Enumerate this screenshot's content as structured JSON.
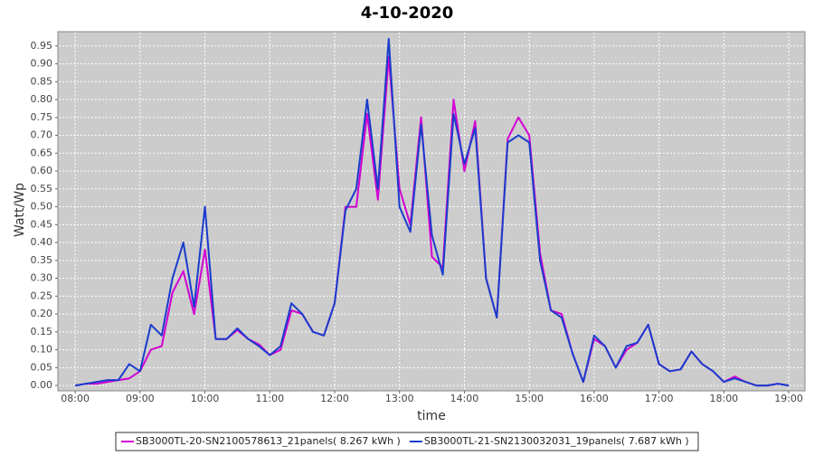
{
  "chart_data": {
    "type": "line",
    "title": "4-10-2020",
    "x_label": "time",
    "y_label": "Watt/Wp",
    "x": [
      "08:00",
      "08:10",
      "08:20",
      "08:30",
      "08:40",
      "08:50",
      "09:00",
      "09:10",
      "09:20",
      "09:30",
      "09:40",
      "09:50",
      "10:00",
      "10:10",
      "10:20",
      "10:30",
      "10:40",
      "10:50",
      "11:00",
      "11:10",
      "11:20",
      "11:30",
      "11:40",
      "11:50",
      "12:00",
      "12:10",
      "12:20",
      "12:30",
      "12:40",
      "12:50",
      "13:00",
      "13:10",
      "13:20",
      "13:30",
      "13:40",
      "13:50",
      "14:00",
      "14:10",
      "14:20",
      "14:30",
      "14:40",
      "14:50",
      "15:00",
      "15:10",
      "15:20",
      "15:30",
      "15:40",
      "15:50",
      "16:00",
      "16:10",
      "16:20",
      "16:30",
      "16:40",
      "16:50",
      "17:00",
      "17:10",
      "17:20",
      "17:30",
      "17:40",
      "17:50",
      "18:00",
      "18:10",
      "18:20",
      "18:30",
      "18:40",
      "18:50",
      "19:00"
    ],
    "series": [
      {
        "name": "SB3000TL-20-SN2100578613_21panels( 8.267 kWh )",
        "color": "#d200d2",
        "values": [
          0,
          0.005,
          0.005,
          0.01,
          0.015,
          0.02,
          0.04,
          0.1,
          0.11,
          0.26,
          0.32,
          0.2,
          0.38,
          0.13,
          0.13,
          0.155,
          0.13,
          0.115,
          0.085,
          0.1,
          0.21,
          0.2,
          0.15,
          0.14,
          0.23,
          0.5,
          0.5,
          0.76,
          0.52,
          0.92,
          0.55,
          0.45,
          0.75,
          0.36,
          0.33,
          0.8,
          0.6,
          0.74,
          0.3,
          0.19,
          0.69,
          0.75,
          0.7,
          0.37,
          0.21,
          0.2,
          0.09,
          0.01,
          0.13,
          0.11,
          0.05,
          0.1,
          0.12,
          0.17,
          0.06,
          0.04,
          0.045,
          0.095,
          0.06,
          0.04,
          0.01,
          0.025,
          0.01,
          0,
          0,
          0.005,
          0
        ]
      },
      {
        "name": "SB3000TL-21-SN2130032031_19panels( 7.687 kWh )",
        "color": "#1a3ccc",
        "values": [
          0,
          0.005,
          0.01,
          0.015,
          0.015,
          0.06,
          0.04,
          0.17,
          0.14,
          0.3,
          0.4,
          0.22,
          0.5,
          0.13,
          0.13,
          0.16,
          0.13,
          0.11,
          0.085,
          0.11,
          0.23,
          0.2,
          0.15,
          0.14,
          0.23,
          0.49,
          0.55,
          0.8,
          0.55,
          0.97,
          0.5,
          0.43,
          0.73,
          0.42,
          0.31,
          0.76,
          0.62,
          0.72,
          0.3,
          0.19,
          0.68,
          0.7,
          0.68,
          0.35,
          0.21,
          0.19,
          0.09,
          0.01,
          0.14,
          0.11,
          0.05,
          0.11,
          0.12,
          0.17,
          0.06,
          0.04,
          0.045,
          0.095,
          0.06,
          0.04,
          0.01,
          0.02,
          0.01,
          0,
          0,
          0.005,
          0
        ]
      }
    ],
    "xlim": [
      "07:44",
      "19:15"
    ],
    "xticks": [
      "08:00",
      "09:00",
      "10:00",
      "11:00",
      "12:00",
      "13:00",
      "14:00",
      "15:00",
      "16:00",
      "17:00",
      "18:00",
      "19:00"
    ],
    "ylim": [
      -0.015,
      0.99
    ],
    "yticks": [
      {
        "value": 0,
        "label": "0.00"
      },
      {
        "value": 0.05,
        "label": "0.05"
      },
      {
        "value": 0.1,
        "label": "0.10"
      },
      {
        "value": 0.15,
        "label": "0.15"
      },
      {
        "value": 0.2,
        "label": "0.20"
      },
      {
        "value": 0.25,
        "label": "0.25"
      },
      {
        "value": 0.3,
        "label": "0.30"
      },
      {
        "value": 0.35,
        "label": "0.35"
      },
      {
        "value": 0.4,
        "label": "0.40"
      },
      {
        "value": 0.45,
        "label": "0.45"
      },
      {
        "value": 0.5,
        "label": "0.50"
      },
      {
        "value": 0.55,
        "label": "0.55"
      },
      {
        "value": 0.6,
        "label": "0.60"
      },
      {
        "value": 0.65,
        "label": "0.65"
      },
      {
        "value": 0.7,
        "label": "0.70"
      },
      {
        "value": 0.75,
        "label": "0.75"
      },
      {
        "value": 0.8,
        "label": "0.80"
      },
      {
        "value": 0.85,
        "label": "0.85"
      },
      {
        "value": 0.9,
        "label": "0.90"
      },
      {
        "value": 0.95,
        "label": "0.95"
      }
    ],
    "grid": true,
    "legend": "bottom"
  }
}
